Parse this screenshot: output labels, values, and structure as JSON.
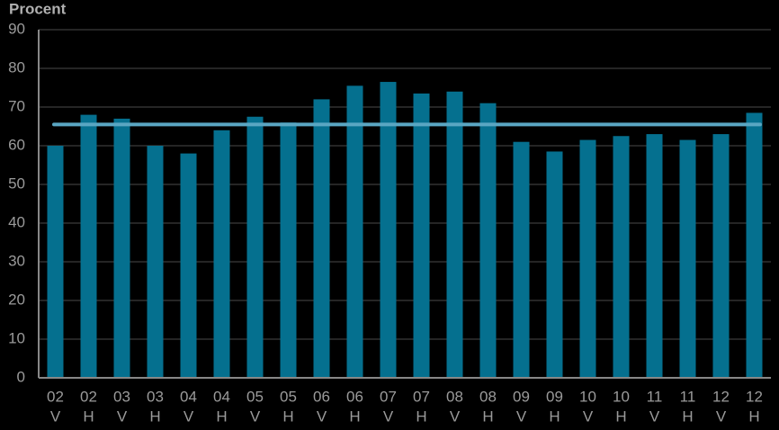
{
  "chart_data": {
    "type": "bar",
    "y_axis_label": "Procent",
    "categories": [
      [
        "02",
        "V"
      ],
      [
        "02",
        "H"
      ],
      [
        "03",
        "V"
      ],
      [
        "03",
        "H"
      ],
      [
        "04",
        "V"
      ],
      [
        "04",
        "H"
      ],
      [
        "05",
        "V"
      ],
      [
        "05",
        "H"
      ],
      [
        "06",
        "V"
      ],
      [
        "06",
        "H"
      ],
      [
        "07",
        "V"
      ],
      [
        "07",
        "H"
      ],
      [
        "08",
        "V"
      ],
      [
        "08",
        "H"
      ],
      [
        "09",
        "V"
      ],
      [
        "09",
        "H"
      ],
      [
        "10",
        "V"
      ],
      [
        "10",
        "H"
      ],
      [
        "11",
        "V"
      ],
      [
        "11",
        "H"
      ],
      [
        "12",
        "V"
      ],
      [
        "12",
        "H"
      ]
    ],
    "values": [
      60,
      68,
      67,
      60,
      58,
      64,
      67.5,
      66,
      72,
      75.5,
      76.5,
      73.5,
      74,
      71,
      61,
      58.5,
      61.5,
      62.5,
      63,
      61.5,
      63,
      68.5
    ],
    "color": "#05708f",
    "reference_line": {
      "value": 65.5,
      "color": "#5aa6c2"
    },
    "ylim": [
      0,
      90
    ],
    "yticks": [
      0,
      10,
      20,
      30,
      40,
      50,
      60,
      70,
      80,
      90
    ],
    "grid": true
  }
}
